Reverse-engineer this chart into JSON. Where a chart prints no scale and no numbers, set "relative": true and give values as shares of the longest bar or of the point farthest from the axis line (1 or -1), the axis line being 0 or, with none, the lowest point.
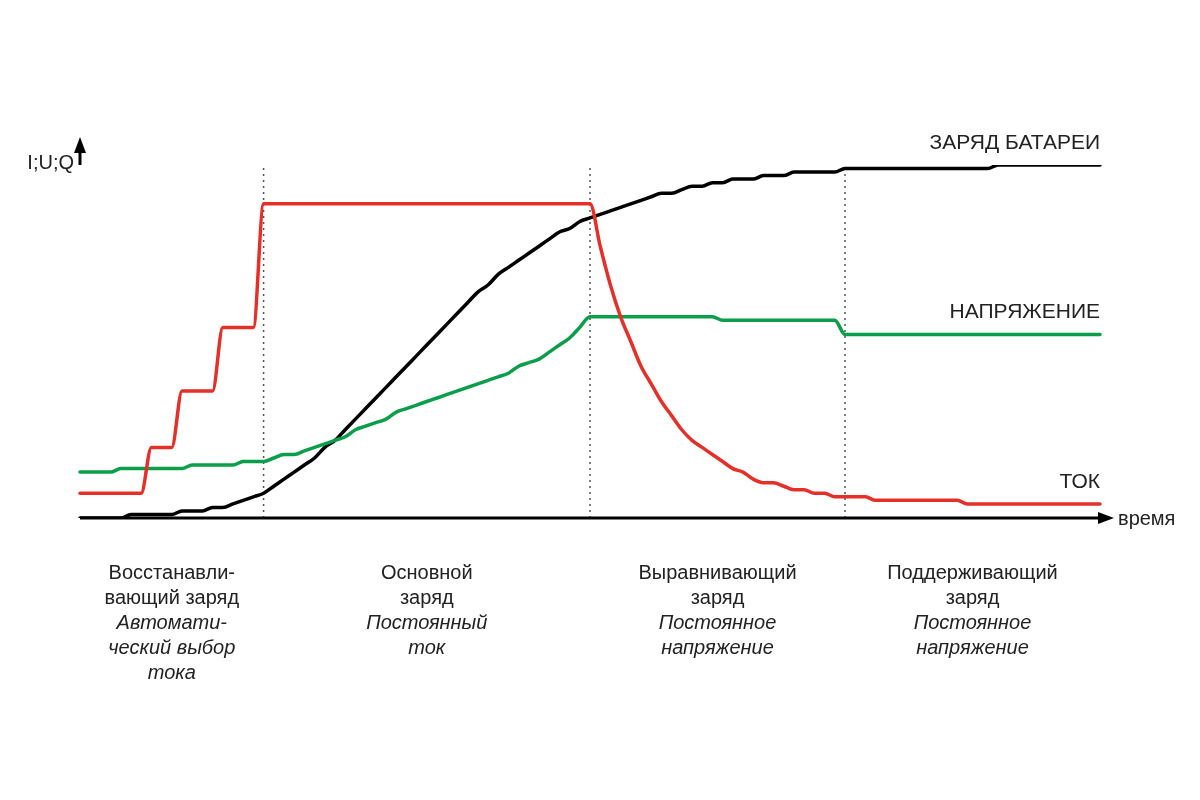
{
  "chart_data": {
    "type": "line",
    "xlabel": "время",
    "ylabel": "I;U;Q",
    "relative": true,
    "marker": "none",
    "line_style": "solid",
    "grid": "x",
    "categories": [
      null,
      null,
      null,
      null,
      null,
      null,
      null,
      null,
      null,
      null,
      null,
      null,
      null,
      null,
      null,
      null,
      null,
      null,
      null,
      null,
      null,
      null,
      null,
      null,
      null,
      null,
      null,
      null,
      null,
      null,
      null,
      null,
      null,
      null,
      null,
      null,
      null,
      null,
      null,
      null,
      null,
      null,
      null,
      null,
      null,
      null,
      null,
      null,
      null,
      null,
      null,
      null,
      null,
      null,
      null,
      null,
      null,
      null,
      null,
      null,
      null,
      null,
      null,
      null,
      null,
      null,
      null,
      null,
      null,
      null,
      null,
      null,
      null,
      null,
      null,
      null,
      null,
      null,
      null,
      null,
      null,
      null,
      null,
      null,
      null,
      null,
      null,
      null,
      null,
      null,
      null,
      null,
      null,
      null,
      null,
      null,
      null,
      null,
      null,
      null,
      null
    ],
    "series": [
      {
        "name": "ЗАРЯД БАТАРЕИ",
        "color": "#000000",
        "values": [
          0,
          0,
          0,
          0,
          0,
          0.01,
          0.01,
          0.01,
          0.01,
          0.01,
          0.02,
          0.02,
          0.02,
          0.03,
          0.03,
          0.04,
          0.05,
          0.06,
          0.07,
          0.09,
          0.11,
          0.13,
          0.15,
          0.17,
          0.2,
          0.22,
          0.25,
          0.28,
          0.31,
          0.34,
          0.37,
          0.4,
          0.43,
          0.46,
          0.49,
          0.52,
          0.55,
          0.58,
          0.61,
          0.64,
          0.66,
          0.69,
          0.71,
          0.73,
          0.75,
          0.77,
          0.79,
          0.81,
          0.82,
          0.84,
          0.85,
          0.86,
          0.87,
          0.88,
          0.89,
          0.9,
          0.91,
          0.92,
          0.92,
          0.93,
          0.94,
          0.94,
          0.95,
          0.95,
          0.96,
          0.96,
          0.96,
          0.97,
          0.97,
          0.97,
          0.98,
          0.98,
          0.98,
          0.98,
          0.98,
          0.99,
          0.99,
          0.99,
          0.99,
          0.99,
          0.99,
          0.99,
          0.99,
          0.99,
          0.99,
          0.99,
          0.99,
          0.99,
          0.99,
          0.99,
          1,
          1,
          1,
          1,
          1,
          1,
          1,
          1,
          1,
          1,
          1
        ]
      },
      {
        "name": "НАПРЯЖЕНИЕ",
        "color": "#0a9e4a",
        "values": [
          0.13,
          0.13,
          0.13,
          0.13,
          0.14,
          0.14,
          0.14,
          0.14,
          0.14,
          0.14,
          0.14,
          0.15,
          0.15,
          0.15,
          0.15,
          0.15,
          0.16,
          0.16,
          0.16,
          0.17,
          0.18,
          0.18,
          0.19,
          0.2,
          0.21,
          0.22,
          0.23,
          0.25,
          0.26,
          0.27,
          0.28,
          0.3,
          0.31,
          0.32,
          0.33,
          0.34,
          0.35,
          0.36,
          0.37,
          0.38,
          0.39,
          0.4,
          0.41,
          0.43,
          0.44,
          0.45,
          0.47,
          0.49,
          0.51,
          0.54,
          0.57,
          0.57,
          0.57,
          0.57,
          0.57,
          0.57,
          0.57,
          0.57,
          0.57,
          0.57,
          0.57,
          0.57,
          0.57,
          0.56,
          0.56,
          0.56,
          0.56,
          0.56,
          0.56,
          0.56,
          0.56,
          0.56,
          0.56,
          0.56,
          0.56,
          0.52,
          0.52,
          0.52,
          0.52,
          0.52,
          0.52,
          0.52,
          0.52,
          0.52,
          0.52,
          0.52,
          0.52,
          0.52,
          0.52,
          0.52,
          0.52,
          0.52,
          0.52,
          0.52,
          0.52,
          0.52,
          0.52,
          0.52,
          0.52,
          0.52,
          0.52
        ]
      },
      {
        "name": "ТОК",
        "color": "#e5302a",
        "values": [
          0.07,
          0.07,
          0.07,
          0.07,
          0.07,
          0.07,
          0.07,
          0.2,
          0.2,
          0.2,
          0.36,
          0.36,
          0.36,
          0.36,
          0.54,
          0.54,
          0.54,
          0.54,
          0.89,
          0.89,
          0.89,
          0.89,
          0.89,
          0.89,
          0.89,
          0.89,
          0.89,
          0.89,
          0.89,
          0.89,
          0.89,
          0.89,
          0.89,
          0.89,
          0.89,
          0.89,
          0.89,
          0.89,
          0.89,
          0.89,
          0.89,
          0.89,
          0.89,
          0.89,
          0.89,
          0.89,
          0.89,
          0.89,
          0.89,
          0.89,
          0.89,
          0.77,
          0.66,
          0.57,
          0.5,
          0.43,
          0.38,
          0.33,
          0.29,
          0.25,
          0.22,
          0.2,
          0.18,
          0.16,
          0.14,
          0.13,
          0.11,
          0.1,
          0.1,
          0.09,
          0.08,
          0.08,
          0.07,
          0.07,
          0.06,
          0.06,
          0.06,
          0.06,
          0.05,
          0.05,
          0.05,
          0.05,
          0.05,
          0.05,
          0.05,
          0.05,
          0.05,
          0.04,
          0.04,
          0.04,
          0.04,
          0.04,
          0.04,
          0.04,
          0.04,
          0.04,
          0.04,
          0.04,
          0.04,
          0.04,
          0.04
        ]
      }
    ],
    "annotations": [
      "Восстанавли-\nвающий заряд",
      "Автомати-\nческий выбор\nтока",
      "Основной\nзаряд",
      "Постоянный\nток",
      "Выравнивающий\nзаряд",
      "Постоянное\nнапряжение",
      "Поддерживающий\nзаряд",
      "Постоянное\nнапряжение"
    ]
  }
}
